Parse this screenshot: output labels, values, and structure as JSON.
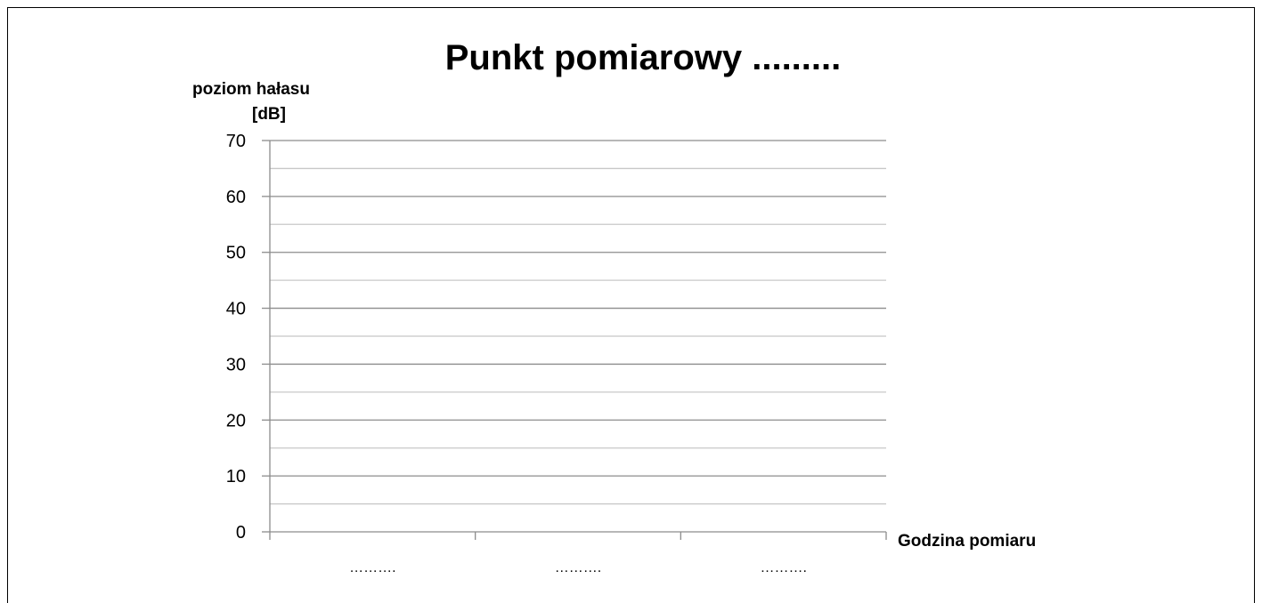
{
  "chart_data": {
    "type": "line",
    "title": "Punkt pomiarowy .........",
    "ylabel_line1": "poziom hałasu",
    "ylabel_line2": "[dB]",
    "xlabel": "Godzina pomiaru",
    "categories": [
      "……….",
      "……….",
      "………."
    ],
    "series": [],
    "ylim": [
      0,
      70
    ],
    "y_major_ticks": [
      0,
      10,
      20,
      30,
      40,
      50,
      60,
      70
    ],
    "y_minor_step": 5,
    "grid": true,
    "legend": "none",
    "colors": {
      "major_grid": "#8c8c8c",
      "minor_grid": "#c8c8c8",
      "axis": "#8c8c8c",
      "text": "#000000"
    }
  }
}
